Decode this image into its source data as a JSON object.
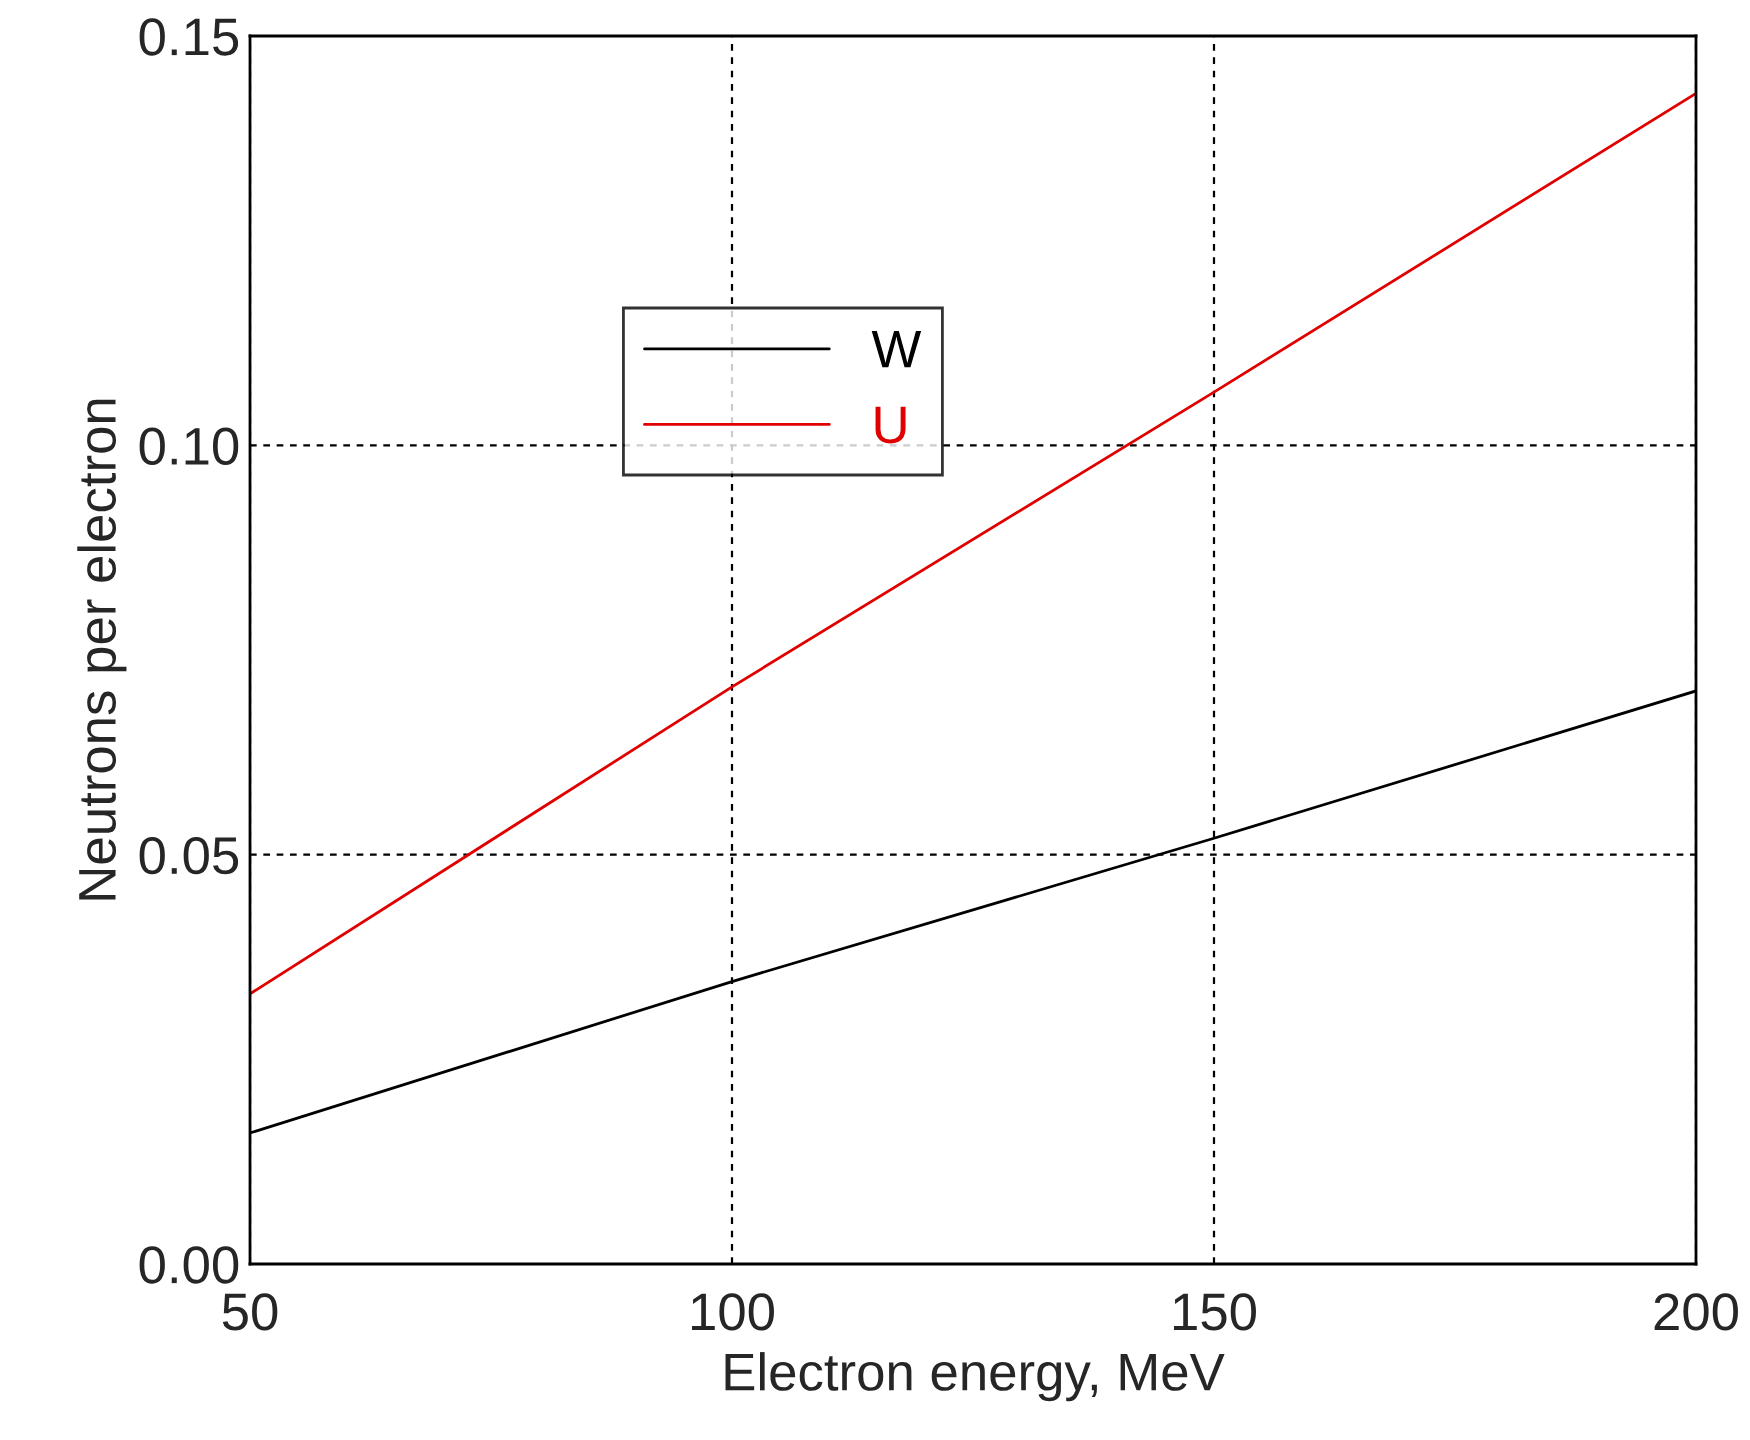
{
  "chart_data": {
    "type": "line",
    "xlabel": "Electron energy, MeV",
    "ylabel": "Neutrons per electron",
    "series": [
      {
        "name": "W",
        "color": "#000000",
        "x": [
          50,
          100,
          150,
          200
        ],
        "values": [
          0.016,
          0.0345,
          0.052,
          0.07
        ]
      },
      {
        "name": "U",
        "color": "#e00000",
        "x": [
          50,
          100,
          150,
          200
        ],
        "values": [
          0.033,
          0.0705,
          0.1065,
          0.143
        ]
      }
    ],
    "xlim": [
      50,
      200
    ],
    "xticks": [
      50,
      100,
      150,
      200
    ],
    "ylim": [
      0,
      0.15
    ],
    "yticks": [
      {
        "value": 0,
        "label": "0.00"
      },
      {
        "value": 0.05,
        "label": "0.05"
      },
      {
        "value": 0.1,
        "label": "0.10"
      },
      {
        "value": 0.15,
        "label": "0.15"
      }
    ],
    "grid": true,
    "legend": "top left",
    "marker": "none",
    "line_style": "solid"
  }
}
